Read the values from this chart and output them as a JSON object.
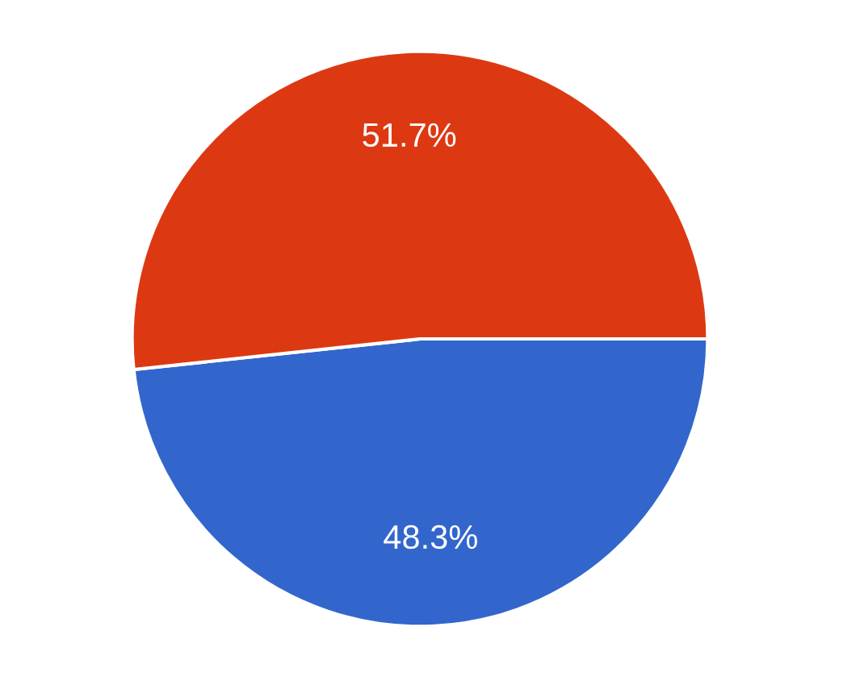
{
  "chart_data": {
    "type": "pie",
    "categories": [
      null,
      null
    ],
    "values": [
      48.3,
      51.7
    ],
    "colors": [
      "#3366cc",
      "#dc3912"
    ],
    "value_labels": [
      "48.3%",
      "51.7%"
    ]
  }
}
